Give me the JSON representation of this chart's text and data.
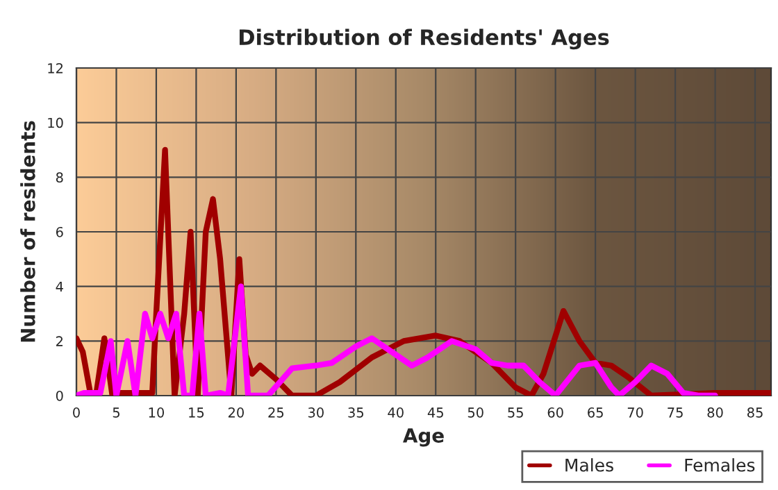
{
  "chart_data": {
    "type": "line",
    "title": "Distribution of Residents' Ages",
    "xlabel": "Age",
    "ylabel": "Number of residents",
    "xlim": [
      0,
      87
    ],
    "xticks": [
      0,
      5,
      10,
      15,
      20,
      25,
      30,
      35,
      40,
      45,
      50,
      55,
      60,
      65,
      70,
      75,
      80,
      85
    ],
    "ylim": [
      0,
      12
    ],
    "yticks": [
      0,
      2,
      4,
      6,
      8,
      10,
      12
    ],
    "grid": true,
    "legend": "bottom right",
    "line_style": "solid",
    "marker": "none",
    "series": [
      {
        "name": "Males",
        "color": "#a00000",
        "x": [
          0,
          0.8,
          1.8,
          2.5,
          3.5,
          4.5,
          5.5,
          9.5,
          10,
          11.1,
          12.3,
          13.5,
          14.3,
          15.2,
          16.2,
          17.1,
          18,
          19.4,
          20.4,
          21.2,
          22,
          23,
          25,
          27,
          30,
          33,
          37,
          41,
          45,
          48,
          52,
          55,
          57,
          58.5,
          61,
          63,
          65,
          67,
          69,
          72,
          80,
          87
        ],
        "values": [
          2.1,
          1.6,
          0,
          0.1,
          2.1,
          0,
          0.1,
          0.1,
          3,
          9.0,
          0,
          3,
          6.0,
          0,
          6,
          7.2,
          5,
          0,
          5.0,
          1.5,
          0.8,
          1.1,
          0.6,
          0,
          0,
          0.5,
          1.4,
          2.0,
          2.2,
          2.0,
          1.2,
          0.3,
          0,
          0.8,
          3.1,
          2.0,
          1.2,
          1.1,
          0.7,
          0,
          0.1,
          0.1
        ]
      },
      {
        "name": "Females",
        "color": "#ff00ff",
        "x": [
          0,
          1,
          3,
          4.3,
          5,
          6.4,
          7.4,
          8.6,
          9.5,
          10.5,
          11.5,
          12.5,
          13.5,
          14.5,
          15.4,
          16.2,
          18,
          19,
          20.6,
          21.5,
          24,
          27,
          30,
          32,
          35,
          37,
          40,
          42,
          44,
          47,
          50,
          52,
          54,
          56,
          58,
          60,
          63,
          65,
          67,
          68,
          70,
          72,
          74,
          76,
          78,
          80
        ],
        "values": [
          0,
          0.1,
          0.1,
          2.0,
          0,
          2.0,
          0,
          3.0,
          2.1,
          3.0,
          2.1,
          3.0,
          0,
          0,
          3.0,
          0,
          0.1,
          0,
          4.0,
          0,
          0,
          1.0,
          1.1,
          1.2,
          1.8,
          2.1,
          1.5,
          1.1,
          1.4,
          2.0,
          1.7,
          1.2,
          1.1,
          1.1,
          0.5,
          0,
          1.1,
          1.2,
          0.3,
          0,
          0.5,
          1.1,
          0.8,
          0.1,
          0,
          0
        ]
      }
    ]
  }
}
